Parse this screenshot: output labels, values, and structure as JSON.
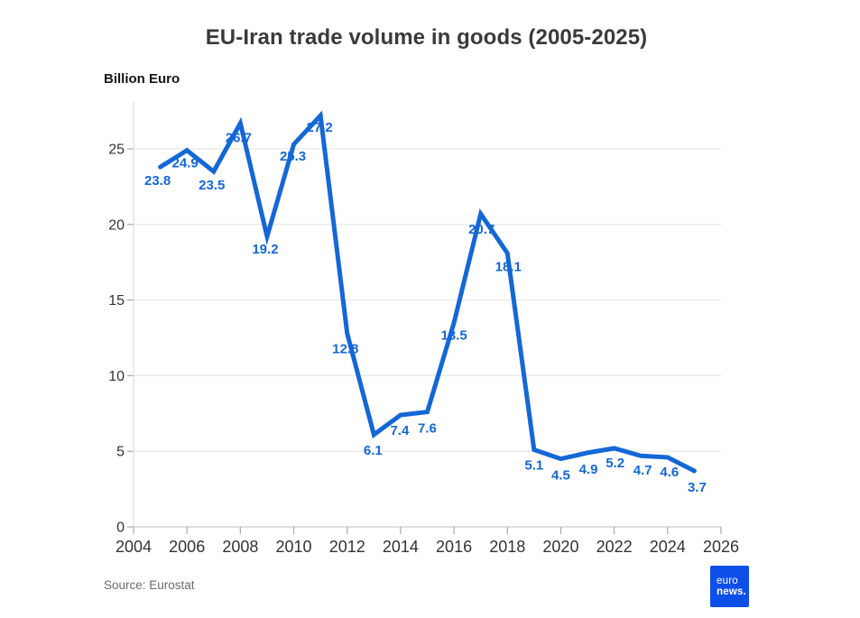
{
  "chart_data": {
    "type": "line",
    "title": "EU-Iran trade volume in goods (2005-2025)",
    "ylabel": "Billion Euro",
    "xlabel": "",
    "x": [
      2005,
      2006,
      2007,
      2008,
      2009,
      2010,
      2011,
      2012,
      2013,
      2014,
      2015,
      2016,
      2017,
      2018,
      2019,
      2020,
      2021,
      2022,
      2023,
      2024,
      2025
    ],
    "series": [
      {
        "name": "EU-Iran trade volume in goods",
        "values": [
          23.8,
          24.9,
          23.5,
          26.7,
          19.2,
          25.3,
          27.2,
          12.8,
          6.1,
          7.4,
          7.6,
          13.5,
          20.7,
          18.1,
          5.1,
          4.5,
          4.9,
          5.2,
          4.7,
          4.6,
          3.7
        ]
      }
    ],
    "xticks": [
      2004,
      2006,
      2008,
      2010,
      2012,
      2014,
      2016,
      2018,
      2020,
      2022,
      2024,
      2026
    ],
    "yticks": [
      0,
      5,
      10,
      15,
      20,
      25
    ],
    "xlim": [
      2004,
      2026
    ],
    "ylim": [
      0,
      28
    ],
    "grid": true,
    "legend": "none",
    "data_labels_shown": true,
    "colors": {
      "line": "#1467d6",
      "data_label": "#1467d6",
      "gridline": "#e7e7e7",
      "baseline": "#cccccc",
      "axis_spine": "#e0e0e0",
      "tick": "#a8a8a8",
      "tick_label": "#333333"
    }
  },
  "footer": {
    "source": "Source: Eurostat",
    "logo": {
      "line1": "euro",
      "line2": "news.",
      "bg_color": "#0e4fea"
    }
  }
}
